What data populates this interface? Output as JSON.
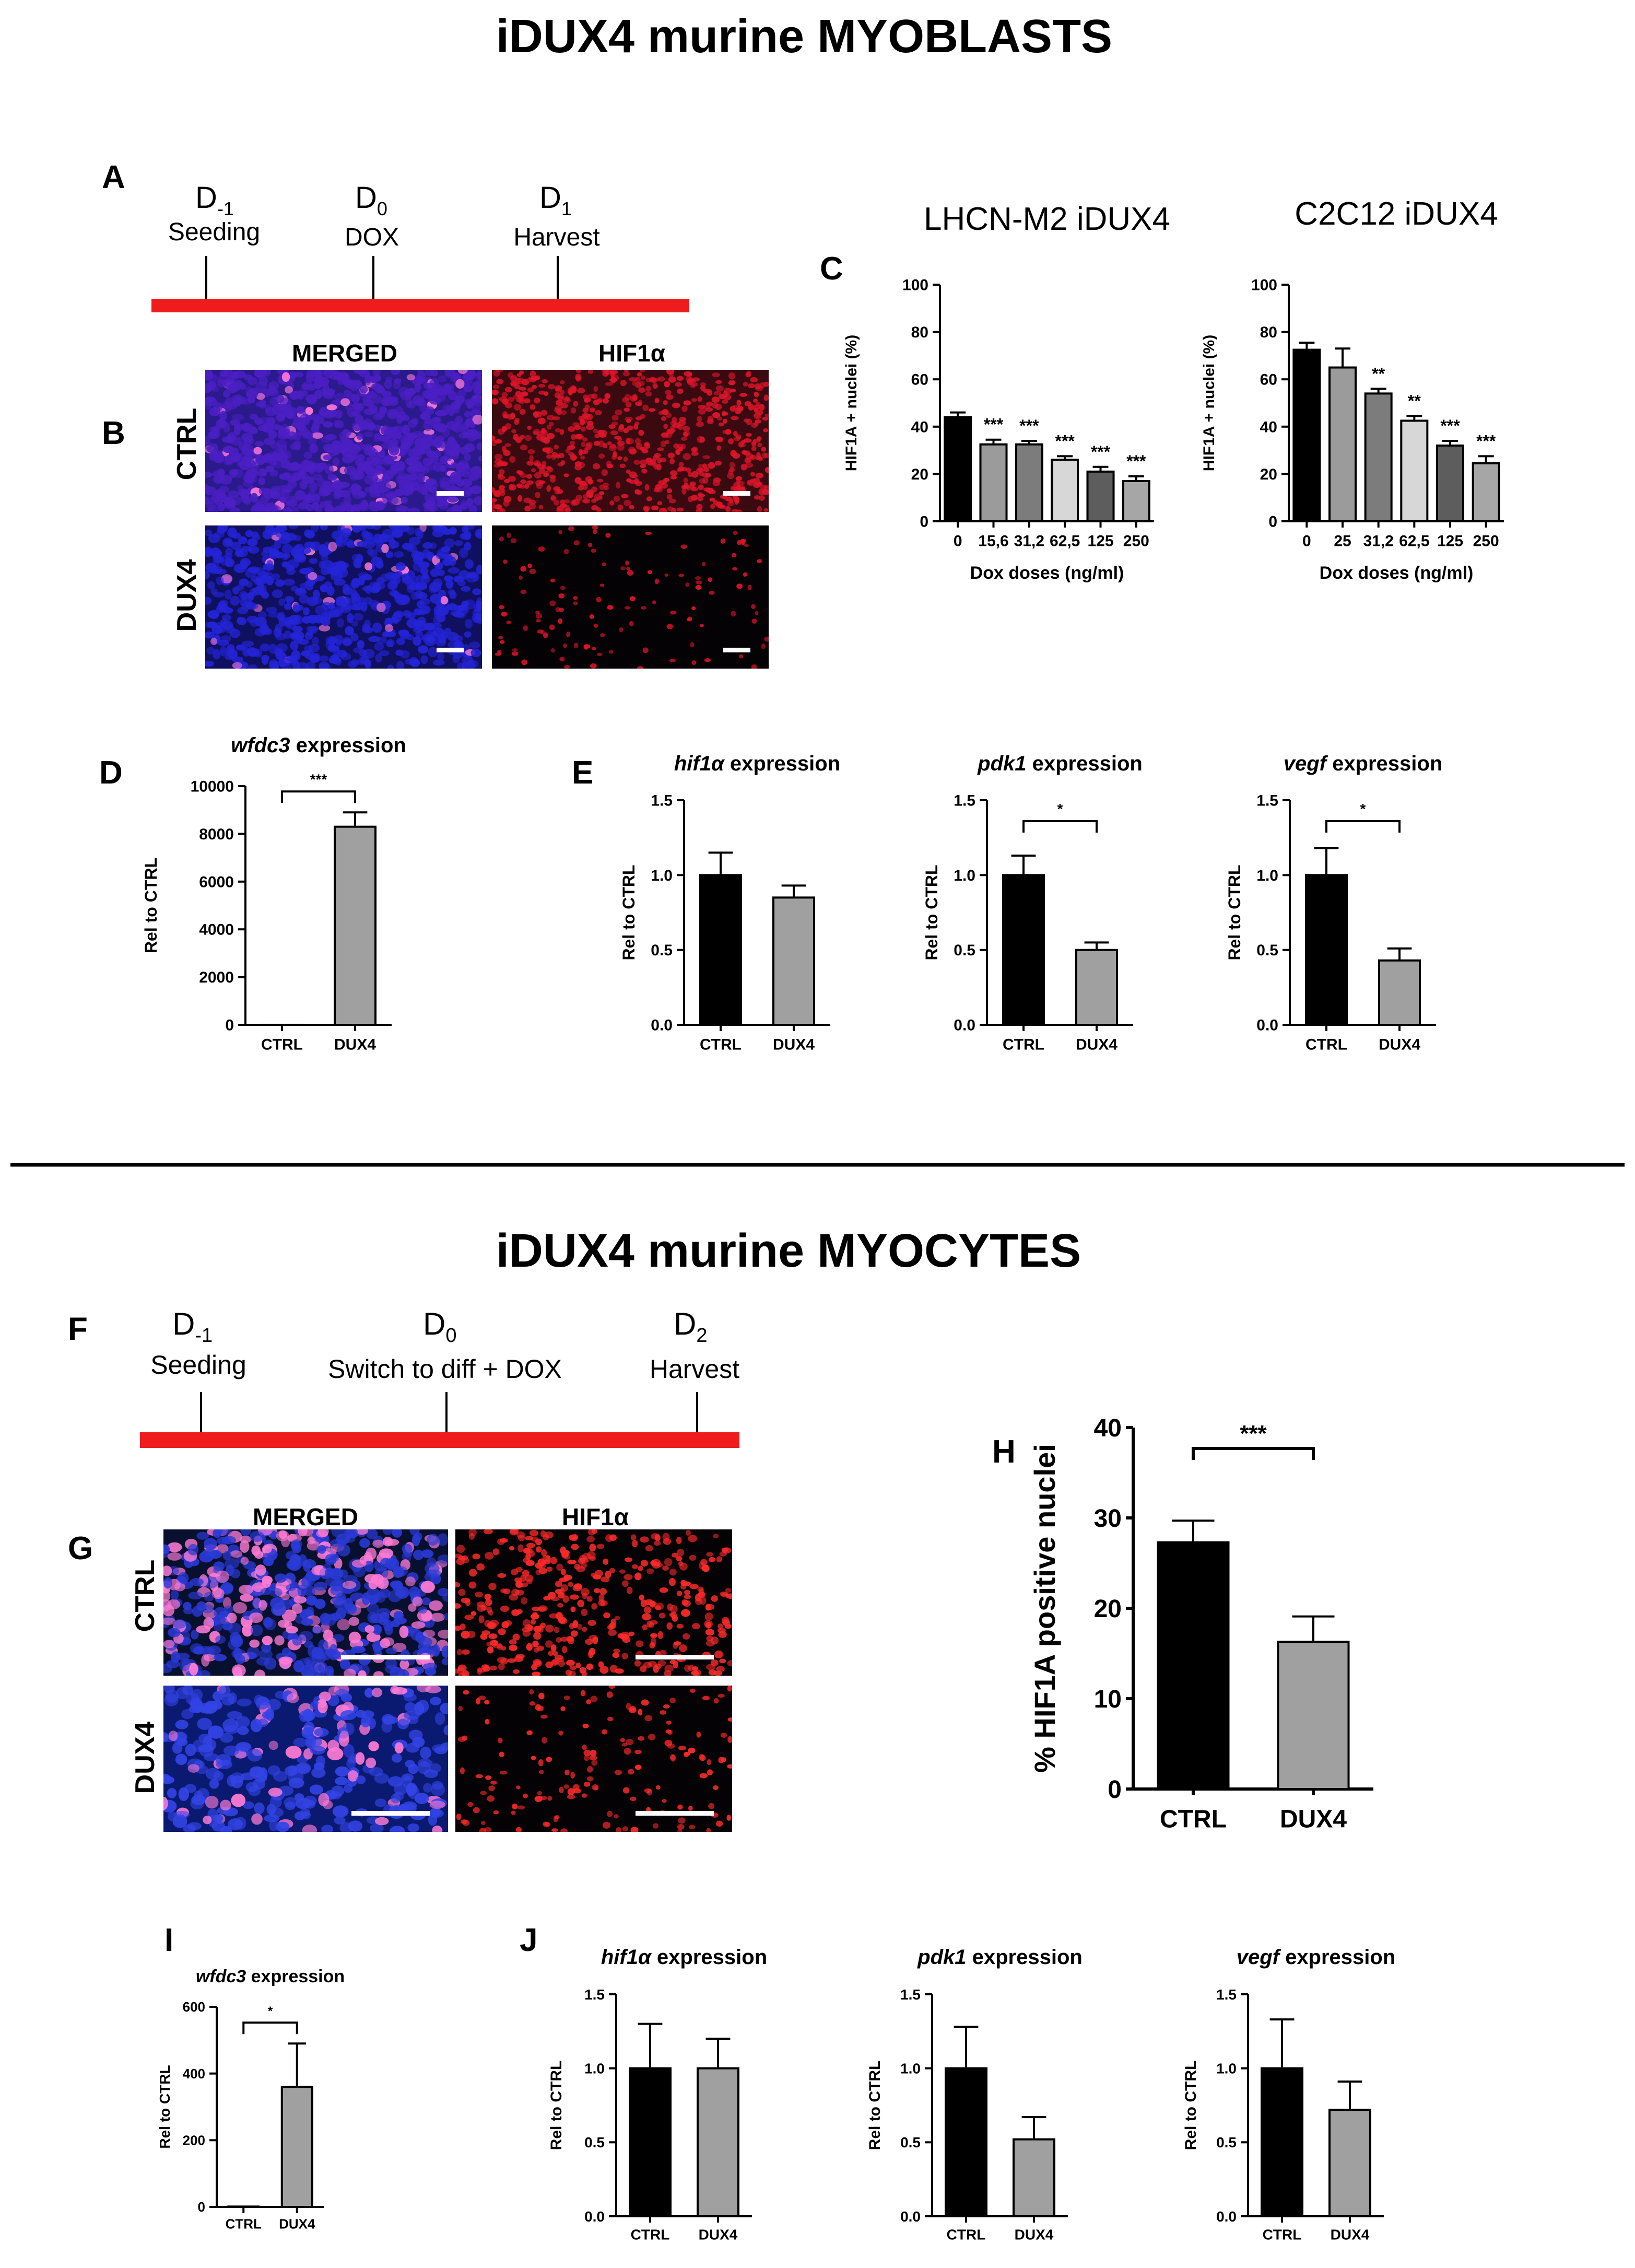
{
  "sections": {
    "myoblasts": {
      "title": "iDUX4 murine MYOBLASTS"
    },
    "myocytes": {
      "title": "iDUX4 murine MYOCYTES"
    }
  },
  "panel_letters": {
    "A": "A",
    "B": "B",
    "C": "C",
    "D": "D",
    "E": "E",
    "F": "F",
    "G": "G",
    "H": "H",
    "I": "I",
    "J": "J"
  },
  "timelines": {
    "A": {
      "color": "#ee1c1c",
      "points": [
        {
          "day_base": "D",
          "day_sub": "-1",
          "label": "Seeding"
        },
        {
          "day_base": "D",
          "day_sub": "0",
          "label": "DOX"
        },
        {
          "day_base": "D",
          "day_sub": "1",
          "label": "Harvest"
        }
      ]
    },
    "F": {
      "color": "#ee1c1c",
      "points": [
        {
          "day_base": "D",
          "day_sub": "-1",
          "label": "Seeding"
        },
        {
          "day_base": "D",
          "day_sub": "0",
          "label": "Switch to diff + DOX"
        },
        {
          "day_base": "D",
          "day_sub": "2",
          "label": "Harvest"
        }
      ]
    }
  },
  "micrographs": {
    "B": {
      "column_headers": [
        "MERGED",
        "HIF1α"
      ],
      "row_labels": [
        "CTRL",
        "DUX4"
      ],
      "colors": {
        "merged": "#4b1fc4",
        "nuclei": "#2424d8",
        "hif": "#e0152a",
        "background": "#0a0418"
      }
    },
    "G": {
      "column_headers": [
        "MERGED",
        "HIF1α"
      ],
      "row_labels": [
        "CTRL",
        "DUX4"
      ],
      "colors": {
        "merged": "#2a3ad6",
        "nuclei": "#3344e6",
        "hif": "#ff2a2a",
        "background": "#050a20"
      }
    }
  },
  "chart_data": [
    {
      "panel": "C",
      "type": "bar",
      "title": "LHCN-M2 iDUX4",
      "xlabel": "Dox doses (ng/ml)",
      "ylabel": "HIF1A + nuclei (%)",
      "ylim": [
        0,
        100
      ],
      "yticks": [
        "0",
        "20",
        "40",
        "60",
        "80",
        "100"
      ],
      "categories": [
        "0",
        "15,6",
        "31,2",
        "62,5",
        "125",
        "250"
      ],
      "values": [
        44,
        32.5,
        32.5,
        26,
        21,
        17
      ],
      "errors": [
        2,
        2,
        1.5,
        1.5,
        2,
        2
      ],
      "colors": [
        "#000000",
        "#9b9b9b",
        "#7c7c7c",
        "#d7d7d7",
        "#5d5d5d",
        "#a6a6a6"
      ],
      "significance": [
        "",
        "***",
        "***",
        "***",
        "***",
        "***"
      ]
    },
    {
      "panel": "C",
      "type": "bar",
      "title": "C2C12 iDUX4",
      "xlabel": "Dox doses (ng/ml)",
      "ylabel": "HIF1A + nuclei (%)",
      "ylim": [
        0,
        100
      ],
      "yticks": [
        "0",
        "20",
        "40",
        "60",
        "80",
        "100"
      ],
      "categories": [
        "0",
        "25",
        "31,2",
        "62,5",
        "125",
        "250"
      ],
      "values": [
        72.5,
        65,
        54,
        42.5,
        32,
        24.5
      ],
      "errors": [
        3,
        8,
        2,
        2,
        2,
        3
      ],
      "colors": [
        "#000000",
        "#9b9b9b",
        "#7c7c7c",
        "#d7d7d7",
        "#5d5d5d",
        "#a6a6a6"
      ],
      "significance": [
        "",
        "",
        "**",
        "**",
        "***",
        "***"
      ]
    },
    {
      "panel": "D",
      "type": "bar",
      "title_gene": "wfdc3",
      "title_rest": " expression",
      "ylabel": "Rel to CTRL",
      "ylim": [
        0,
        10000
      ],
      "yticks": [
        "0",
        "2000",
        "4000",
        "6000",
        "8000",
        "10000"
      ],
      "categories": [
        "CTRL",
        "DUX4"
      ],
      "values": [
        1,
        8300
      ],
      "errors": [
        0,
        600
      ],
      "colors": [
        "#000000",
        "#a0a0a0"
      ],
      "comparison": "***"
    },
    {
      "panel": "E",
      "type": "bar",
      "title_gene": "hif1α",
      "title_rest": " expression",
      "ylabel": "Rel to CTRL",
      "ylim": [
        0,
        1.5
      ],
      "yticks": [
        "0.0",
        "0.5",
        "1.0",
        "1.5"
      ],
      "categories": [
        "CTRL",
        "DUX4"
      ],
      "values": [
        1.0,
        0.85
      ],
      "errors": [
        0.15,
        0.08
      ],
      "colors": [
        "#000000",
        "#a0a0a0"
      ],
      "comparison": ""
    },
    {
      "panel": "E",
      "type": "bar",
      "title_gene": "pdk1",
      "title_rest": " expression",
      "ylabel": "Rel to CTRL",
      "ylim": [
        0,
        1.5
      ],
      "yticks": [
        "0.0",
        "0.5",
        "1.0",
        "1.5"
      ],
      "categories": [
        "CTRL",
        "DUX4"
      ],
      "values": [
        1.0,
        0.5
      ],
      "errors": [
        0.13,
        0.05
      ],
      "colors": [
        "#000000",
        "#a0a0a0"
      ],
      "comparison": "*"
    },
    {
      "panel": "E",
      "type": "bar",
      "title_gene": "vegf",
      "title_rest": " expression",
      "ylabel": "Rel to CTRL",
      "ylim": [
        0,
        1.5
      ],
      "yticks": [
        "0.0",
        "0.5",
        "1.0",
        "1.5"
      ],
      "categories": [
        "CTRL",
        "DUX4"
      ],
      "values": [
        1.0,
        0.43
      ],
      "errors": [
        0.18,
        0.08
      ],
      "colors": [
        "#000000",
        "#a0a0a0"
      ],
      "comparison": "*"
    },
    {
      "panel": "H",
      "type": "bar",
      "ylabel": "% HIF1A positive nuclei",
      "ylim": [
        0,
        40
      ],
      "yticks": [
        "0",
        "10",
        "20",
        "30",
        "40"
      ],
      "categories": [
        "CTRL",
        "DUX4"
      ],
      "values": [
        27.3,
        16.3
      ],
      "errors": [
        2.4,
        2.8
      ],
      "colors": [
        "#000000",
        "#a0a0a0"
      ],
      "comparison": "***"
    },
    {
      "panel": "I",
      "type": "bar",
      "title_gene": "wfdc3",
      "title_rest": " expression",
      "ylabel": "Rel to CTRL",
      "ylim": [
        0,
        600
      ],
      "yticks": [
        "0",
        "200",
        "400",
        "600"
      ],
      "categories": [
        "CTRL",
        "DUX4"
      ],
      "values": [
        1,
        360
      ],
      "errors": [
        0,
        130
      ],
      "colors": [
        "#000000",
        "#a0a0a0"
      ],
      "comparison": "*"
    },
    {
      "panel": "J",
      "type": "bar",
      "title_gene": "hif1α",
      "title_rest": " expression",
      "ylabel": "Rel to CTRL",
      "ylim": [
        0,
        1.5
      ],
      "yticks": [
        "0.0",
        "0.5",
        "1.0",
        "1.5"
      ],
      "categories": [
        "CTRL",
        "DUX4"
      ],
      "values": [
        1.0,
        1.0
      ],
      "errors": [
        0.3,
        0.2
      ],
      "colors": [
        "#000000",
        "#a0a0a0"
      ],
      "comparison": ""
    },
    {
      "panel": "J",
      "type": "bar",
      "title_gene": "pdk1",
      "title_rest": " expression",
      "ylabel": "Rel to CTRL",
      "ylim": [
        0,
        1.5
      ],
      "yticks": [
        "0.0",
        "0.5",
        "1.0",
        "1.5"
      ],
      "categories": [
        "CTRL",
        "DUX4"
      ],
      "values": [
        1.0,
        0.52
      ],
      "errors": [
        0.28,
        0.15
      ],
      "colors": [
        "#000000",
        "#a0a0a0"
      ],
      "comparison": ""
    },
    {
      "panel": "J",
      "type": "bar",
      "title_gene": "vegf",
      "title_rest": " expression",
      "ylabel": "Rel to CTRL",
      "ylim": [
        0,
        1.5
      ],
      "yticks": [
        "0.0",
        "0.5",
        "1.0",
        "1.5"
      ],
      "categories": [
        "CTRL",
        "DUX4"
      ],
      "values": [
        1.0,
        0.72
      ],
      "errors": [
        0.33,
        0.19
      ],
      "colors": [
        "#000000",
        "#a0a0a0"
      ],
      "comparison": ""
    }
  ]
}
